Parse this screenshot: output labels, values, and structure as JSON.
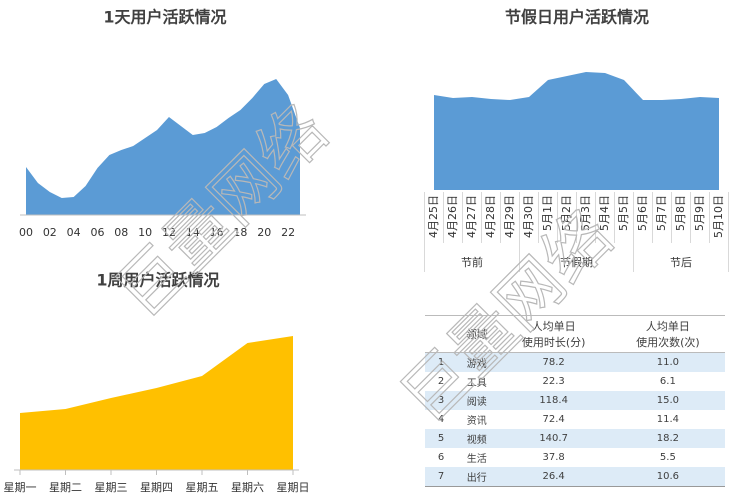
{
  "chart_data": [
    {
      "type": "area",
      "title": "1天用户活跃情况",
      "color": "#5b9bd5",
      "categories": [
        "00",
        null,
        "02",
        null,
        "04",
        null,
        "06",
        null,
        "08",
        null,
        "10",
        null,
        "12",
        null,
        "14",
        null,
        "16",
        null,
        "18",
        null,
        "20",
        null,
        "22",
        null
      ],
      "values": [
        48,
        32,
        23,
        17,
        18,
        29,
        47,
        60,
        65,
        69,
        77,
        85,
        98,
        89,
        80,
        82,
        88,
        97,
        105,
        117,
        131,
        136,
        120,
        87
      ]
    },
    {
      "type": "area",
      "title": "1周用户活跃情况",
      "color": "#ffc000",
      "categories": [
        "星期一",
        "星期二",
        "星期三",
        "星期四",
        "星期五",
        "星期六",
        "星期日"
      ],
      "values": [
        57,
        61,
        72,
        82,
        94,
        127,
        134
      ]
    },
    {
      "type": "area",
      "title": "节假日用户活跃情况",
      "color": "#5b9bd5",
      "groups": [
        {
          "name": "节前",
          "categories": [
            "4月25日",
            "4月26日",
            "4月27日",
            "4月28日",
            "4月29日"
          ]
        },
        {
          "name": "节假期",
          "categories": [
            "4月30日",
            "5月1日",
            "5月2日",
            "5月3日",
            "5月4日",
            "5月5日"
          ]
        },
        {
          "name": "节后",
          "categories": [
            "5月6日",
            "5月7日",
            "5月8日",
            "5月9日",
            "5月10日"
          ]
        }
      ],
      "values": [
        95,
        92,
        93,
        91,
        90,
        93,
        110,
        114,
        118,
        117,
        110,
        90,
        90,
        91,
        93,
        92
      ]
    }
  ],
  "table": {
    "columns": [
      "领域",
      "人均单日\n使用时长(分)",
      "人均单日\n使用次数(次)"
    ],
    "rows": [
      [
        "1",
        "游戏",
        "78.2",
        "11.0"
      ],
      [
        "2",
        "工具",
        "22.3",
        "6.1"
      ],
      [
        "3",
        "阅读",
        "118.4",
        "15.0"
      ],
      [
        "4",
        "资讯",
        "72.4",
        "11.4"
      ],
      [
        "5",
        "视频",
        "140.7",
        "18.2"
      ],
      [
        "6",
        "生活",
        "37.8",
        "5.5"
      ],
      [
        "7",
        "出行",
        "26.4",
        "10.6"
      ]
    ]
  },
  "watermark": "巨量网络"
}
